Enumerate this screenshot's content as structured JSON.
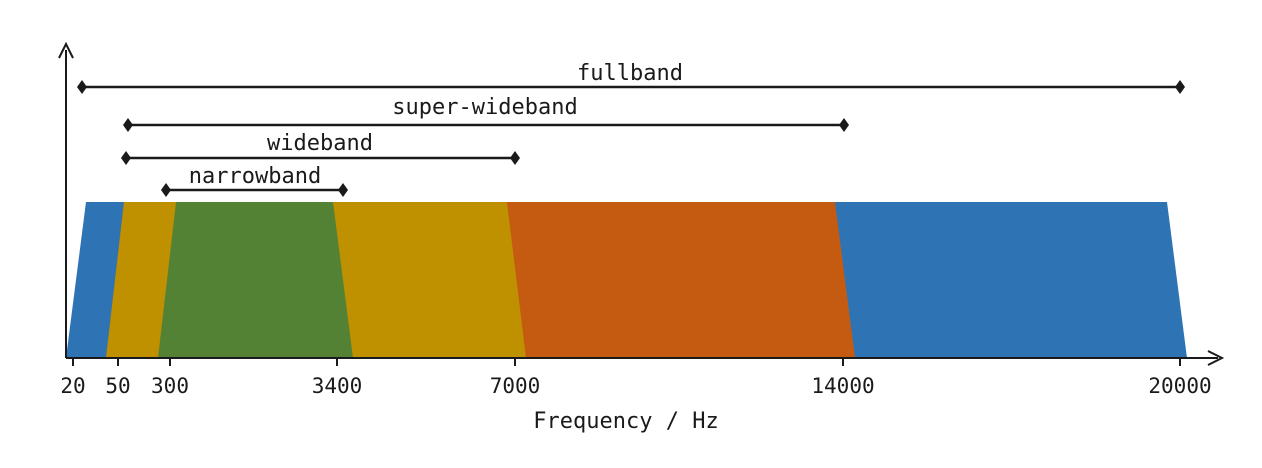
{
  "diagram": {
    "x_axis": {
      "label": "Frequency / Hz",
      "ticks": [
        "20",
        "50",
        "300",
        "3400",
        "7000",
        "14000",
        "20000"
      ]
    },
    "bands": [
      {
        "id": "fullband",
        "label": "fullband",
        "from": "20",
        "to": "20000"
      },
      {
        "id": "super-wideband",
        "label": "super-wideband",
        "from": "50",
        "to": "14000"
      },
      {
        "id": "wideband",
        "label": "wideband",
        "from": "50",
        "to": "7000"
      },
      {
        "id": "narrowband",
        "label": "narrowband",
        "from": "300",
        "to": "3400"
      }
    ],
    "regions": [
      {
        "id": "fullband-region",
        "color": "#2e74b5"
      },
      {
        "id": "super-wideband-region",
        "color": "#c55a11"
      },
      {
        "id": "wideband-region",
        "color": "#bf9000"
      },
      {
        "id": "narrowband-region",
        "color": "#548235"
      }
    ]
  }
}
